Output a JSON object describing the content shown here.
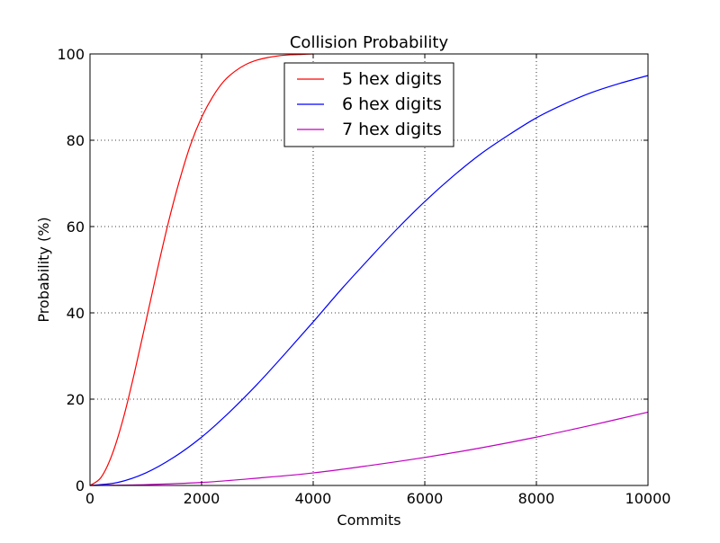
{
  "chart_data": {
    "type": "line",
    "title": "Collision Probability",
    "xlabel": "Commits",
    "ylabel": "Probability (%)",
    "xlim": [
      0,
      10000
    ],
    "ylim": [
      0,
      100
    ],
    "xticks": [
      0,
      2000,
      4000,
      6000,
      8000,
      10000
    ],
    "yticks": [
      0,
      20,
      40,
      60,
      80,
      100
    ],
    "xtick_labels": [
      "0",
      "2000",
      "4000",
      "6000",
      "8000",
      "10000"
    ],
    "ytick_labels": [
      "0",
      "20",
      "40",
      "60",
      "80",
      "100"
    ],
    "grid": true,
    "legend_position": "top-center",
    "series": [
      {
        "name": "5 hex digits",
        "color": "#ff0000",
        "x": [
          0,
          200,
          400,
          600,
          800,
          1000,
          1200,
          1400,
          1600,
          1800,
          2000,
          2200,
          2400,
          2600,
          2800,
          3000,
          3200,
          3400,
          3600,
          3800,
          4000
        ],
        "y": [
          0,
          1.9,
          7.3,
          15.7,
          26.3,
          37.9,
          49.6,
          60.7,
          70.5,
          78.9,
          85.3,
          90.1,
          93.7,
          96.0,
          97.6,
          98.6,
          99.2,
          99.6,
          99.8,
          99.9,
          100
        ]
      },
      {
        "name": "6 hex digits",
        "color": "#0000ff",
        "x": [
          0,
          500,
          1000,
          1500,
          2000,
          2500,
          3000,
          3500,
          4000,
          4500,
          5000,
          5500,
          6000,
          6500,
          7000,
          7500,
          8000,
          8500,
          9000,
          9500,
          10000
        ],
        "y": [
          0,
          0.7,
          2.9,
          6.5,
          11.2,
          17.0,
          23.5,
          30.6,
          37.9,
          45.4,
          52.5,
          59.4,
          65.8,
          71.6,
          76.8,
          81.2,
          85.2,
          88.4,
          91.1,
          93.2,
          95.0
        ]
      },
      {
        "name": "7 hex digits",
        "color": "#bf00bf",
        "x": [
          0,
          1000,
          2000,
          3000,
          4000,
          5000,
          6000,
          7000,
          8000,
          9000,
          10000
        ],
        "y": [
          0,
          0.2,
          0.7,
          1.7,
          2.9,
          4.6,
          6.5,
          8.7,
          11.2,
          14.0,
          17.0
        ]
      }
    ]
  }
}
